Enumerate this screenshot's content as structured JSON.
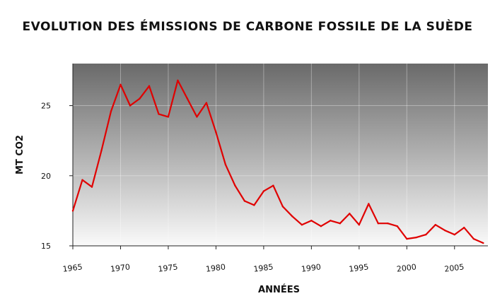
{
  "chart_data": {
    "type": "line",
    "title": "EVOLUTION DES ÉMISSIONS DE CARBONE FOSSILE DE LA SUÈDE",
    "xlabel": "ANNÉES",
    "ylabel": "MT CO2",
    "xlim": [
      1965,
      2008.5
    ],
    "ylim": [
      15,
      28
    ],
    "x_ticks": [
      1965,
      1970,
      1975,
      1980,
      1985,
      1990,
      1995,
      2000,
      2005
    ],
    "y_ticks": [
      15,
      20,
      25
    ],
    "grid": true,
    "background": "gradient-gray",
    "line_color": "#e00000",
    "series": [
      {
        "x": [
          1965,
          1966,
          1967,
          1968,
          1969,
          1970,
          1971,
          1972,
          1973,
          1974,
          1975,
          1976,
          1977,
          1978,
          1979,
          1980,
          1981,
          1982,
          1983,
          1984,
          1985,
          1986,
          1987,
          1988,
          1989,
          1990,
          1991,
          1992,
          1993,
          1994,
          1995,
          1996,
          1997,
          1998,
          1999,
          2000,
          2001,
          2002,
          2003,
          2004,
          2005,
          2006,
          2007,
          2008
        ],
        "y": [
          17.5,
          19.7,
          19.2,
          21.8,
          24.6,
          26.5,
          25.0,
          25.5,
          26.4,
          24.4,
          24.2,
          26.8,
          25.5,
          24.2,
          25.2,
          23.1,
          20.8,
          19.3,
          18.2,
          17.9,
          18.9,
          19.3,
          17.8,
          17.1,
          16.5,
          16.8,
          16.4,
          16.8,
          16.6,
          17.3,
          16.5,
          18.0,
          16.6,
          16.6,
          16.4,
          15.5,
          15.6,
          15.8,
          16.5,
          16.1,
          15.8,
          16.3,
          15.5,
          15.2
        ]
      }
    ]
  }
}
